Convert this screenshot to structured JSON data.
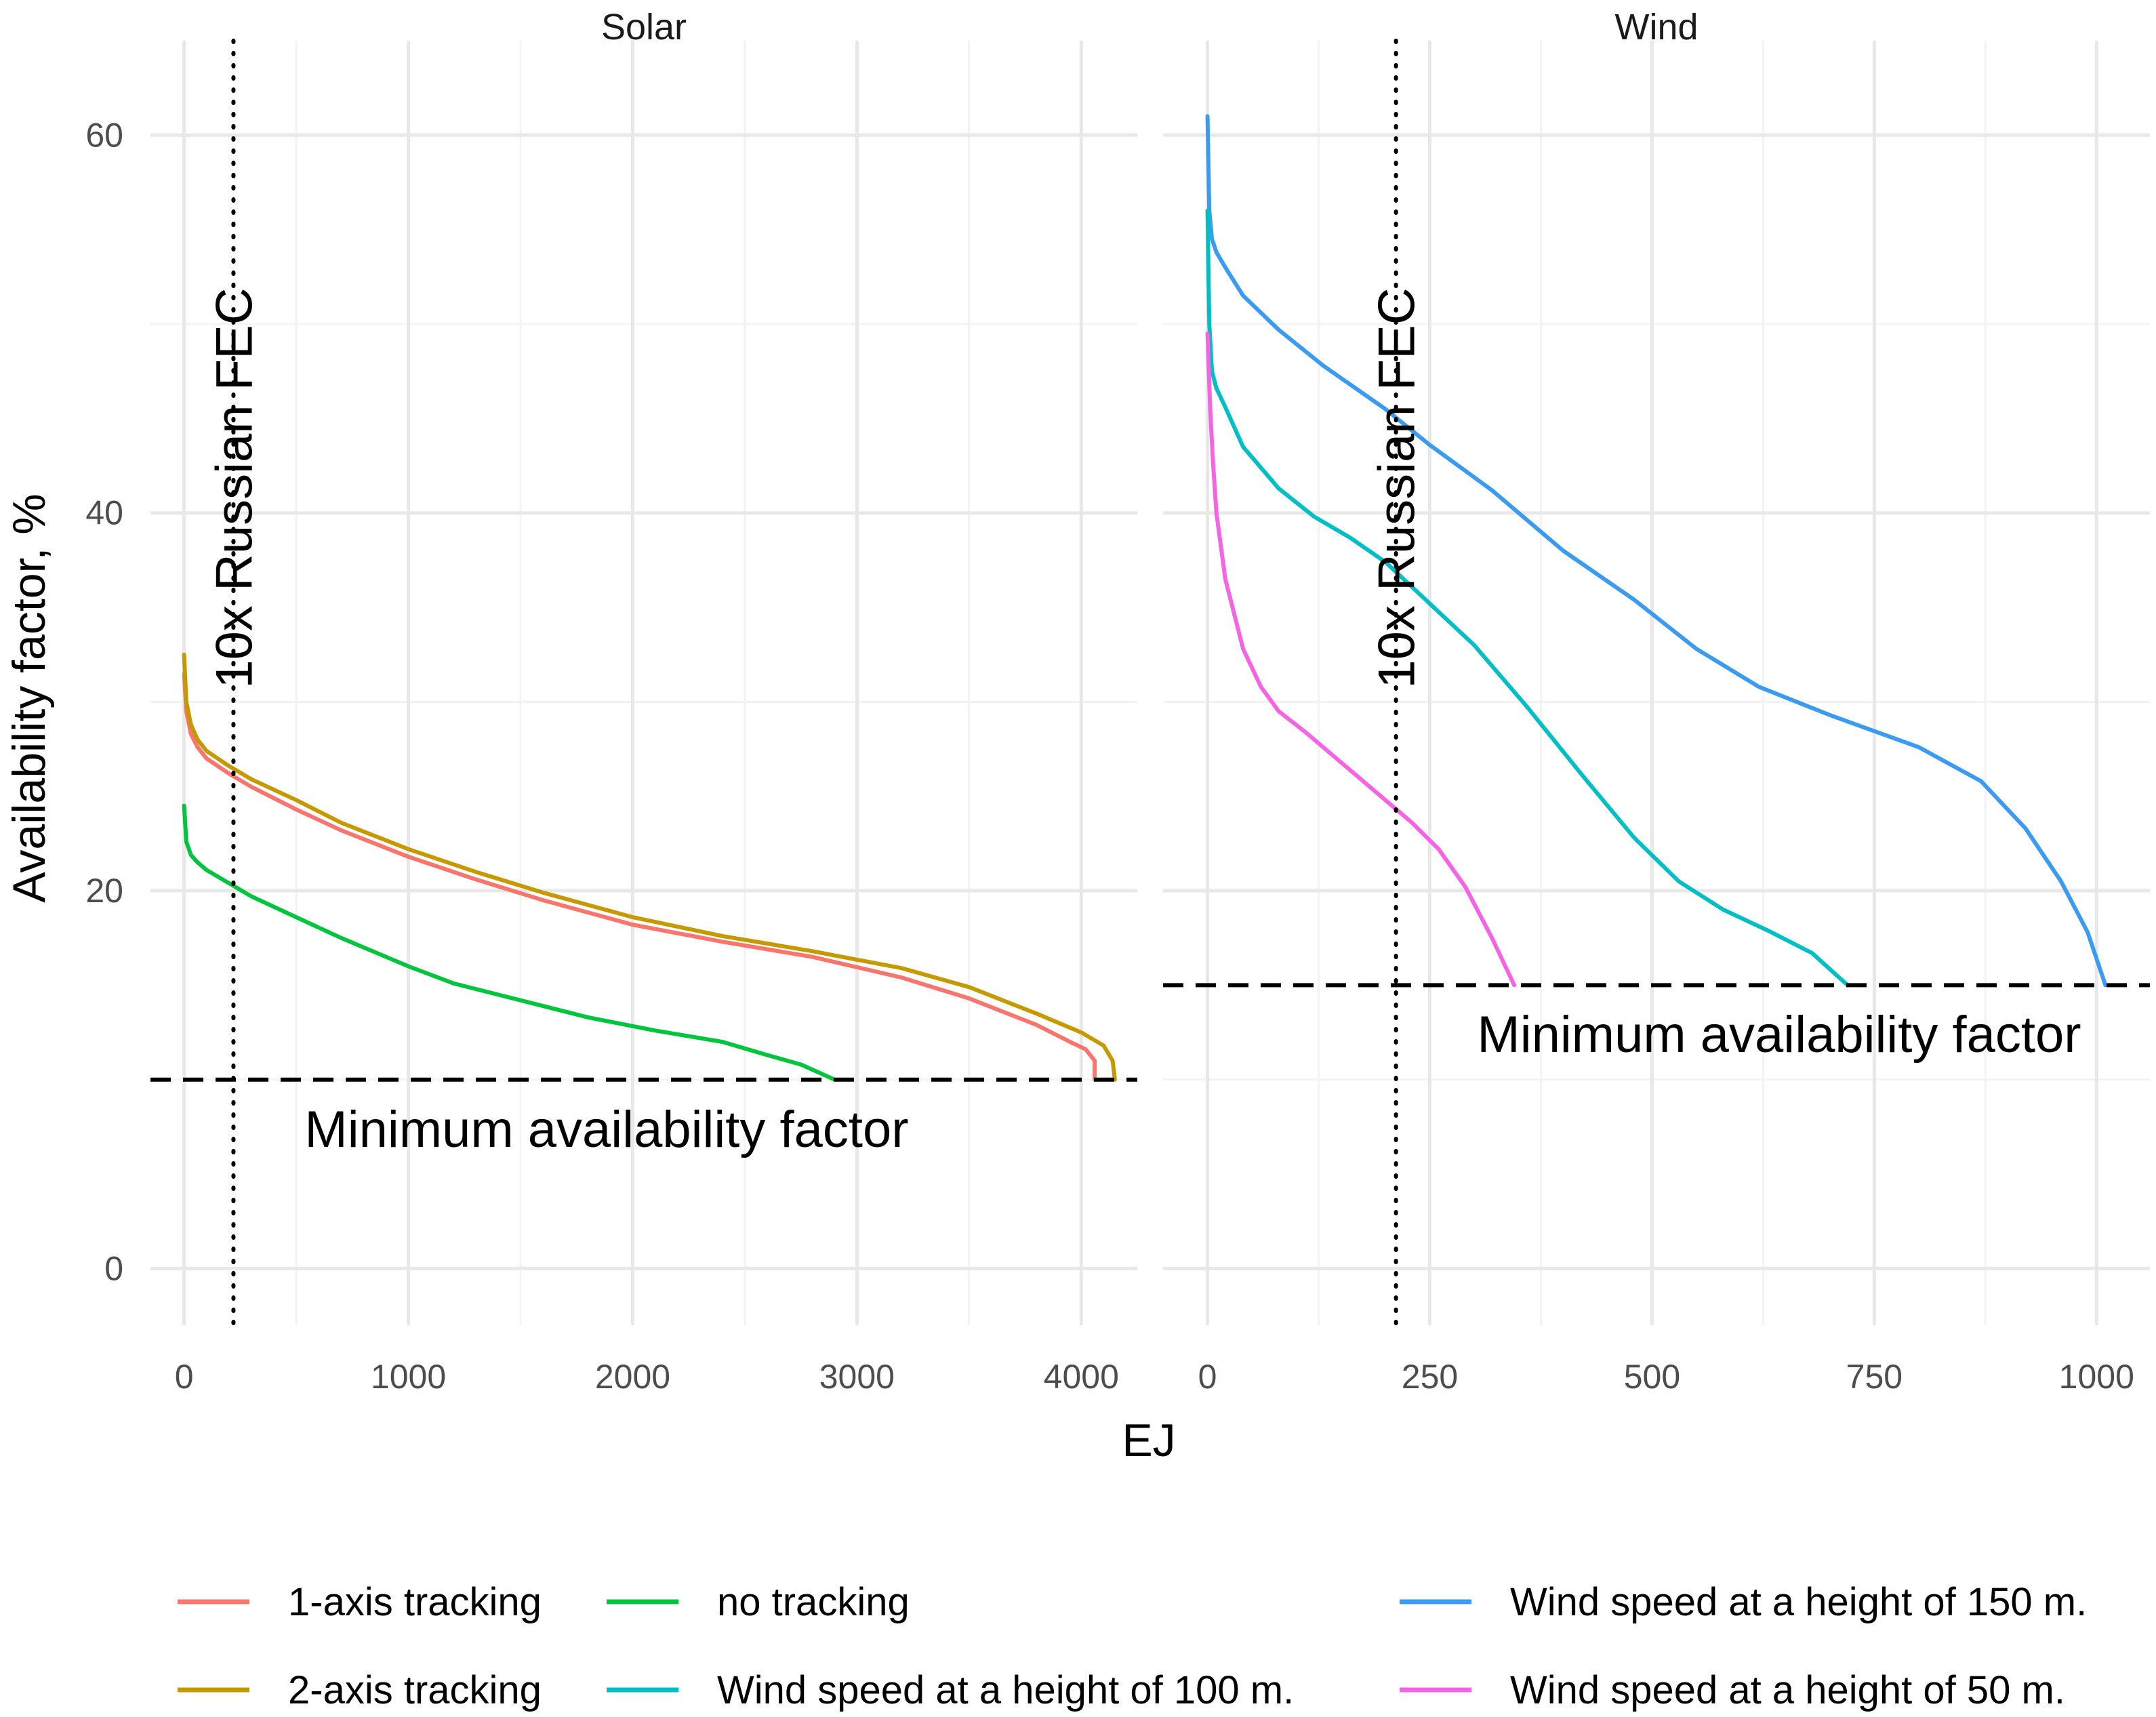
{
  "chart_data": {
    "type": "line",
    "ylabel": "Availability factor, %",
    "xlabel": "EJ",
    "ylim": [
      -3,
      65
    ],
    "y_ticks": [
      0,
      20,
      40,
      60
    ],
    "y_tick_labels": [
      "0",
      "20",
      "40",
      "60"
    ],
    "legend_position": "bottom",
    "legend": {
      "items": [
        {
          "key": "one_axis",
          "label": "1-axis tracking",
          "color": "#F8766D"
        },
        {
          "key": "two_axis",
          "label": "2-axis tracking",
          "color": "#C49A00"
        },
        {
          "key": "no_tracking",
          "label": "no tracking",
          "color": "#00C43E"
        },
        {
          "key": "wind_100",
          "label": "Wind speed at a height of 100 m.",
          "color": "#00BFC4"
        },
        {
          "key": "wind_150",
          "label": "Wind speed at a height of 150 m.",
          "color": "#3A9BF0"
        },
        {
          "key": "wind_50",
          "label": "Wind speed at a height of 50 m.",
          "color": "#F564E3"
        }
      ]
    },
    "panels": [
      {
        "key": "solar",
        "title": "Solar",
        "xlim": [
          -150,
          4250
        ],
        "x_ticks": [
          0,
          1000,
          2000,
          3000,
          4000
        ],
        "x_tick_labels": [
          "0",
          "1000",
          "2000",
          "3000",
          "4000"
        ],
        "vline": {
          "x": 220,
          "label": "10x Russian FEC"
        },
        "hline": {
          "y": 10,
          "label": "Minimum availability factor"
        },
        "series": [
          {
            "key": "one_axis",
            "name": "1-axis tracking",
            "x": [
              0,
              10,
              30,
              60,
              100,
              200,
              300,
              500,
              700,
              1000,
              1300,
              1600,
              2000,
              2400,
              2800,
              3200,
              3500,
              3800,
              3950,
              4020,
              4060,
              4060
            ],
            "y": [
              31.5,
              29.5,
              28.3,
              27.6,
              27,
              26.2,
              25.5,
              24.3,
              23.2,
              21.8,
              20.6,
              19.5,
              18.2,
              17.3,
              16.5,
              15.4,
              14.3,
              12.9,
              12,
              11.6,
              11,
              10
            ]
          },
          {
            "key": "two_axis",
            "name": "2-axis tracking",
            "x": [
              0,
              10,
              30,
              60,
              100,
              200,
              300,
              500,
              700,
              1000,
              1300,
              1600,
              2000,
              2400,
              2800,
              3200,
              3500,
              3800,
              4000,
              4100,
              4140,
              4150
            ],
            "y": [
              32.5,
              30,
              28.8,
              28,
              27.4,
              26.6,
              25.9,
              24.8,
              23.6,
              22.2,
              21,
              19.9,
              18.6,
              17.6,
              16.8,
              15.9,
              14.9,
              13.5,
              12.5,
              11.8,
              11,
              10
            ]
          },
          {
            "key": "no_tracking",
            "name": "no tracking",
            "x": [
              0,
              10,
              30,
              60,
              100,
              200,
              300,
              500,
              700,
              1000,
              1200,
              1500,
              1800,
              2100,
              2400,
              2600,
              2750,
              2900
            ],
            "y": [
              24.5,
              22.6,
              21.9,
              21.5,
              21.1,
              20.4,
              19.7,
              18.6,
              17.5,
              16,
              15.1,
              14.2,
              13.3,
              12.6,
              12,
              11.3,
              10.8,
              10
            ]
          }
        ]
      },
      {
        "key": "wind",
        "title": "Wind",
        "xlim": [
          -50,
          1060
        ],
        "x_ticks": [
          0,
          250,
          500,
          750,
          1000
        ],
        "x_tick_labels": [
          "0",
          "250",
          "500",
          "750",
          "1000"
        ],
        "vline": {
          "x": 212,
          "label": "10x Russian FEC"
        },
        "hline": {
          "y": 15,
          "label": "Minimum availability factor"
        },
        "series": [
          {
            "key": "wind_150",
            "name": "Wind speed at a height of 150 m.",
            "x": [
              0,
              2,
              5,
              10,
              20,
              40,
              80,
              130,
              200,
              250,
              320,
              400,
              480,
              550,
              620,
              700,
              800,
              870,
              920,
              960,
              990,
              1010
            ],
            "y": [
              61,
              56,
              54.5,
              53.8,
              53,
              51.5,
              49.7,
              47.8,
              45.5,
              43.6,
              41.2,
              38,
              35.4,
              32.8,
              30.8,
              29.3,
              27.6,
              25.8,
              23.3,
              20.5,
              17.8,
              15
            ]
          },
          {
            "key": "wind_100",
            "name": "Wind speed at a height of 100 m.",
            "x": [
              0,
              2,
              5,
              10,
              20,
              40,
              80,
              120,
              160,
              200,
              250,
              300,
              360,
              420,
              480,
              530,
              580,
              630,
              680,
              720
            ],
            "y": [
              56,
              50,
              47.5,
              46.6,
              45.6,
              43.5,
              41.3,
              39.8,
              38.7,
              37.4,
              35.2,
              33,
              29.7,
              26.2,
              22.8,
              20.5,
              19,
              17.9,
              16.7,
              15
            ]
          },
          {
            "key": "wind_50",
            "name": "Wind speed at a height of 50 m.",
            "x": [
              0,
              3,
              6,
              10,
              20,
              40,
              60,
              80,
              110,
              140,
              170,
              200,
              230,
              260,
              290,
              320,
              345
            ],
            "y": [
              49.5,
              45.5,
              42.8,
              40,
              36.5,
              32.8,
              30.8,
              29.5,
              28.4,
              27.2,
              26,
              24.8,
              23.6,
              22.2,
              20.2,
              17.5,
              15
            ]
          }
        ]
      }
    ]
  }
}
